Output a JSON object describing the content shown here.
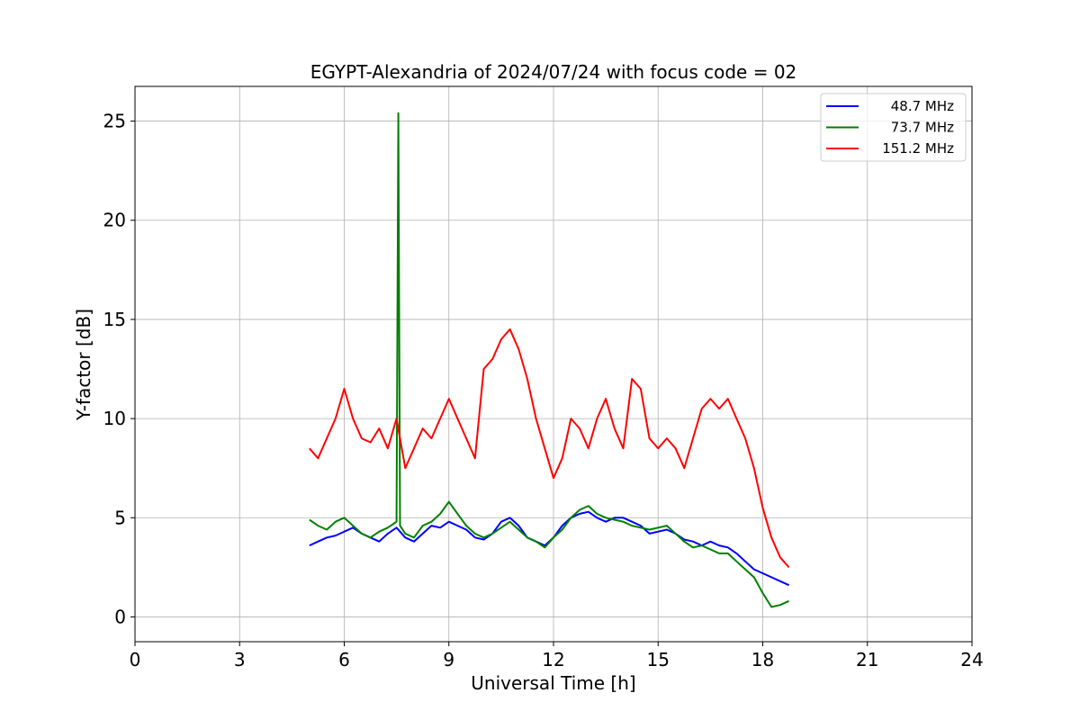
{
  "chart_data": {
    "type": "line",
    "title": "EGYPT-Alexandria of 2024/07/24 with focus code = 02",
    "xlabel": "Universal Time [h]",
    "ylabel": "Y-factor [dB]",
    "xlim": [
      0,
      24
    ],
    "ylim": [
      -1.25,
      26.75
    ],
    "xticks": [
      0,
      3,
      6,
      9,
      12,
      15,
      18,
      21,
      24
    ],
    "yticks": [
      0,
      5,
      10,
      15,
      20,
      25
    ],
    "grid": true,
    "legend_position": "top-right",
    "series": [
      {
        "name": "48.7 MHz",
        "color": "#0000ff",
        "x": [
          5.0,
          5.25,
          5.5,
          5.75,
          6.0,
          6.25,
          6.5,
          6.75,
          7.0,
          7.25,
          7.5,
          7.75,
          8.0,
          8.25,
          8.5,
          8.75,
          9.0,
          9.25,
          9.5,
          9.75,
          10.0,
          10.25,
          10.5,
          10.75,
          11.0,
          11.25,
          11.5,
          11.75,
          12.0,
          12.25,
          12.5,
          12.75,
          13.0,
          13.25,
          13.5,
          13.75,
          14.0,
          14.25,
          14.5,
          14.75,
          15.0,
          15.25,
          15.5,
          15.75,
          16.0,
          16.25,
          16.5,
          16.75,
          17.0,
          17.25,
          17.5,
          17.75,
          18.0,
          18.25,
          18.5,
          18.75
        ],
        "y": [
          3.6,
          3.8,
          4.0,
          4.1,
          4.3,
          4.5,
          4.2,
          4.0,
          3.8,
          4.2,
          4.5,
          4.0,
          3.8,
          4.2,
          4.6,
          4.5,
          4.8,
          4.6,
          4.4,
          4.0,
          3.9,
          4.2,
          4.8,
          5.0,
          4.6,
          4.0,
          3.8,
          3.6,
          4.0,
          4.6,
          5.0,
          5.2,
          5.3,
          5.0,
          4.8,
          5.0,
          5.0,
          4.8,
          4.6,
          4.2,
          4.3,
          4.4,
          4.2,
          3.9,
          3.8,
          3.6,
          3.8,
          3.6,
          3.5,
          3.2,
          2.8,
          2.4,
          2.2,
          2.0,
          1.8,
          1.6
        ]
      },
      {
        "name": "73.7 MHz",
        "color": "#008000",
        "x": [
          5.0,
          5.25,
          5.5,
          5.75,
          6.0,
          6.25,
          6.5,
          6.75,
          7.0,
          7.25,
          7.5,
          7.55,
          7.6,
          7.75,
          8.0,
          8.25,
          8.5,
          8.75,
          9.0,
          9.25,
          9.5,
          9.75,
          10.0,
          10.25,
          10.5,
          10.75,
          11.0,
          11.25,
          11.5,
          11.75,
          12.0,
          12.25,
          12.5,
          12.75,
          13.0,
          13.25,
          13.5,
          13.75,
          14.0,
          14.25,
          14.5,
          14.75,
          15.0,
          15.25,
          15.5,
          15.75,
          16.0,
          16.25,
          16.5,
          16.75,
          17.0,
          17.25,
          17.5,
          17.75,
          18.0,
          18.25,
          18.5,
          18.75
        ],
        "y": [
          4.9,
          4.6,
          4.4,
          4.8,
          5.0,
          4.6,
          4.2,
          4.0,
          4.3,
          4.5,
          4.8,
          25.4,
          4.6,
          4.2,
          4.0,
          4.6,
          4.8,
          5.2,
          5.8,
          5.2,
          4.6,
          4.2,
          4.0,
          4.2,
          4.5,
          4.8,
          4.4,
          4.0,
          3.8,
          3.5,
          4.0,
          4.4,
          5.0,
          5.4,
          5.6,
          5.2,
          5.0,
          4.9,
          4.8,
          4.6,
          4.5,
          4.4,
          4.5,
          4.6,
          4.2,
          3.8,
          3.5,
          3.6,
          3.4,
          3.2,
          3.2,
          2.8,
          2.4,
          2.0,
          1.2,
          0.5,
          0.6,
          0.8
        ]
      },
      {
        "name": "151.2 MHz",
        "color": "#ff0000",
        "x": [
          5.0,
          5.25,
          5.5,
          5.75,
          6.0,
          6.25,
          6.5,
          6.75,
          7.0,
          7.25,
          7.5,
          7.75,
          8.0,
          8.25,
          8.5,
          8.75,
          9.0,
          9.25,
          9.5,
          9.75,
          10.0,
          10.25,
          10.5,
          10.75,
          11.0,
          11.25,
          11.5,
          11.75,
          12.0,
          12.25,
          12.5,
          12.75,
          13.0,
          13.25,
          13.5,
          13.75,
          14.0,
          14.25,
          14.5,
          14.75,
          15.0,
          15.25,
          15.5,
          15.75,
          16.0,
          16.25,
          16.5,
          16.75,
          17.0,
          17.25,
          17.5,
          17.75,
          18.0,
          18.25,
          18.5,
          18.75
        ],
        "y": [
          8.5,
          8.0,
          9.0,
          10.0,
          11.5,
          10.0,
          9.0,
          8.8,
          9.5,
          8.5,
          10.0,
          7.5,
          8.5,
          9.5,
          9.0,
          10.0,
          11.0,
          10.0,
          9.0,
          8.0,
          12.5,
          13.0,
          14.0,
          14.5,
          13.5,
          12.0,
          10.0,
          8.5,
          7.0,
          8.0,
          10.0,
          9.5,
          8.5,
          10.0,
          11.0,
          9.5,
          8.5,
          12.0,
          11.5,
          9.0,
          8.5,
          9.0,
          8.5,
          7.5,
          9.0,
          10.5,
          11.0,
          10.5,
          11.0,
          10.0,
          9.0,
          7.5,
          5.5,
          4.0,
          3.0,
          2.5
        ]
      }
    ]
  }
}
